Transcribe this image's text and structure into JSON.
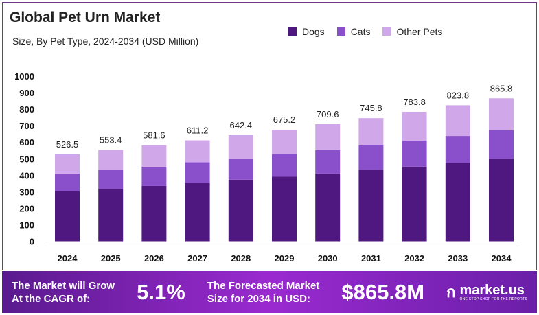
{
  "chart_data": {
    "type": "bar",
    "stacked": true,
    "title": "Global Pet Urn Market",
    "subtitle": "Size, By Pet Type, 2024-2034 (USD Million)",
    "categories": [
      "2024",
      "2025",
      "2026",
      "2027",
      "2028",
      "2029",
      "2030",
      "2031",
      "2032",
      "2033",
      "2034"
    ],
    "series": [
      {
        "name": "Dogs",
        "color": "#4f1880",
        "values": [
          302,
          318,
          335,
          352,
          373,
          391,
          410,
          432,
          452,
          476,
          501
        ]
      },
      {
        "name": "Cats",
        "color": "#8a4fcb",
        "values": [
          108,
          113,
          117,
          126,
          124,
          135,
          141,
          148,
          157,
          162,
          171
        ]
      },
      {
        "name": "Other Pets",
        "color": "#d0a8ea",
        "values": [
          116.5,
          122.4,
          129.6,
          133.2,
          145.4,
          149.2,
          158.6,
          165.8,
          174.8,
          185.8,
          193.8
        ]
      }
    ],
    "totals": [
      "526.5",
      "553.4",
      "581.6",
      "611.2",
      "642.4",
      "675.2",
      "709.6",
      "745.8",
      "783.8",
      "823.8",
      "865.8"
    ],
    "yticks": [
      "0",
      "100",
      "200",
      "300",
      "400",
      "500",
      "600",
      "700",
      "800",
      "900",
      "1000"
    ],
    "ylim": [
      0,
      1000
    ],
    "legend_position": "top-right",
    "grid": false
  },
  "banner": {
    "cagr_label_1": "The Market will Grow",
    "cagr_label_2": "At the CAGR of:",
    "cagr_value": "5.1%",
    "forecast_label_1": "The Forecasted Market",
    "forecast_label_2": "Size for 2034 in USD:",
    "forecast_value": "$865.8M",
    "logo_text": "market.us",
    "logo_tagline": "ONE STOP SHOP FOR THE REPORTS"
  }
}
